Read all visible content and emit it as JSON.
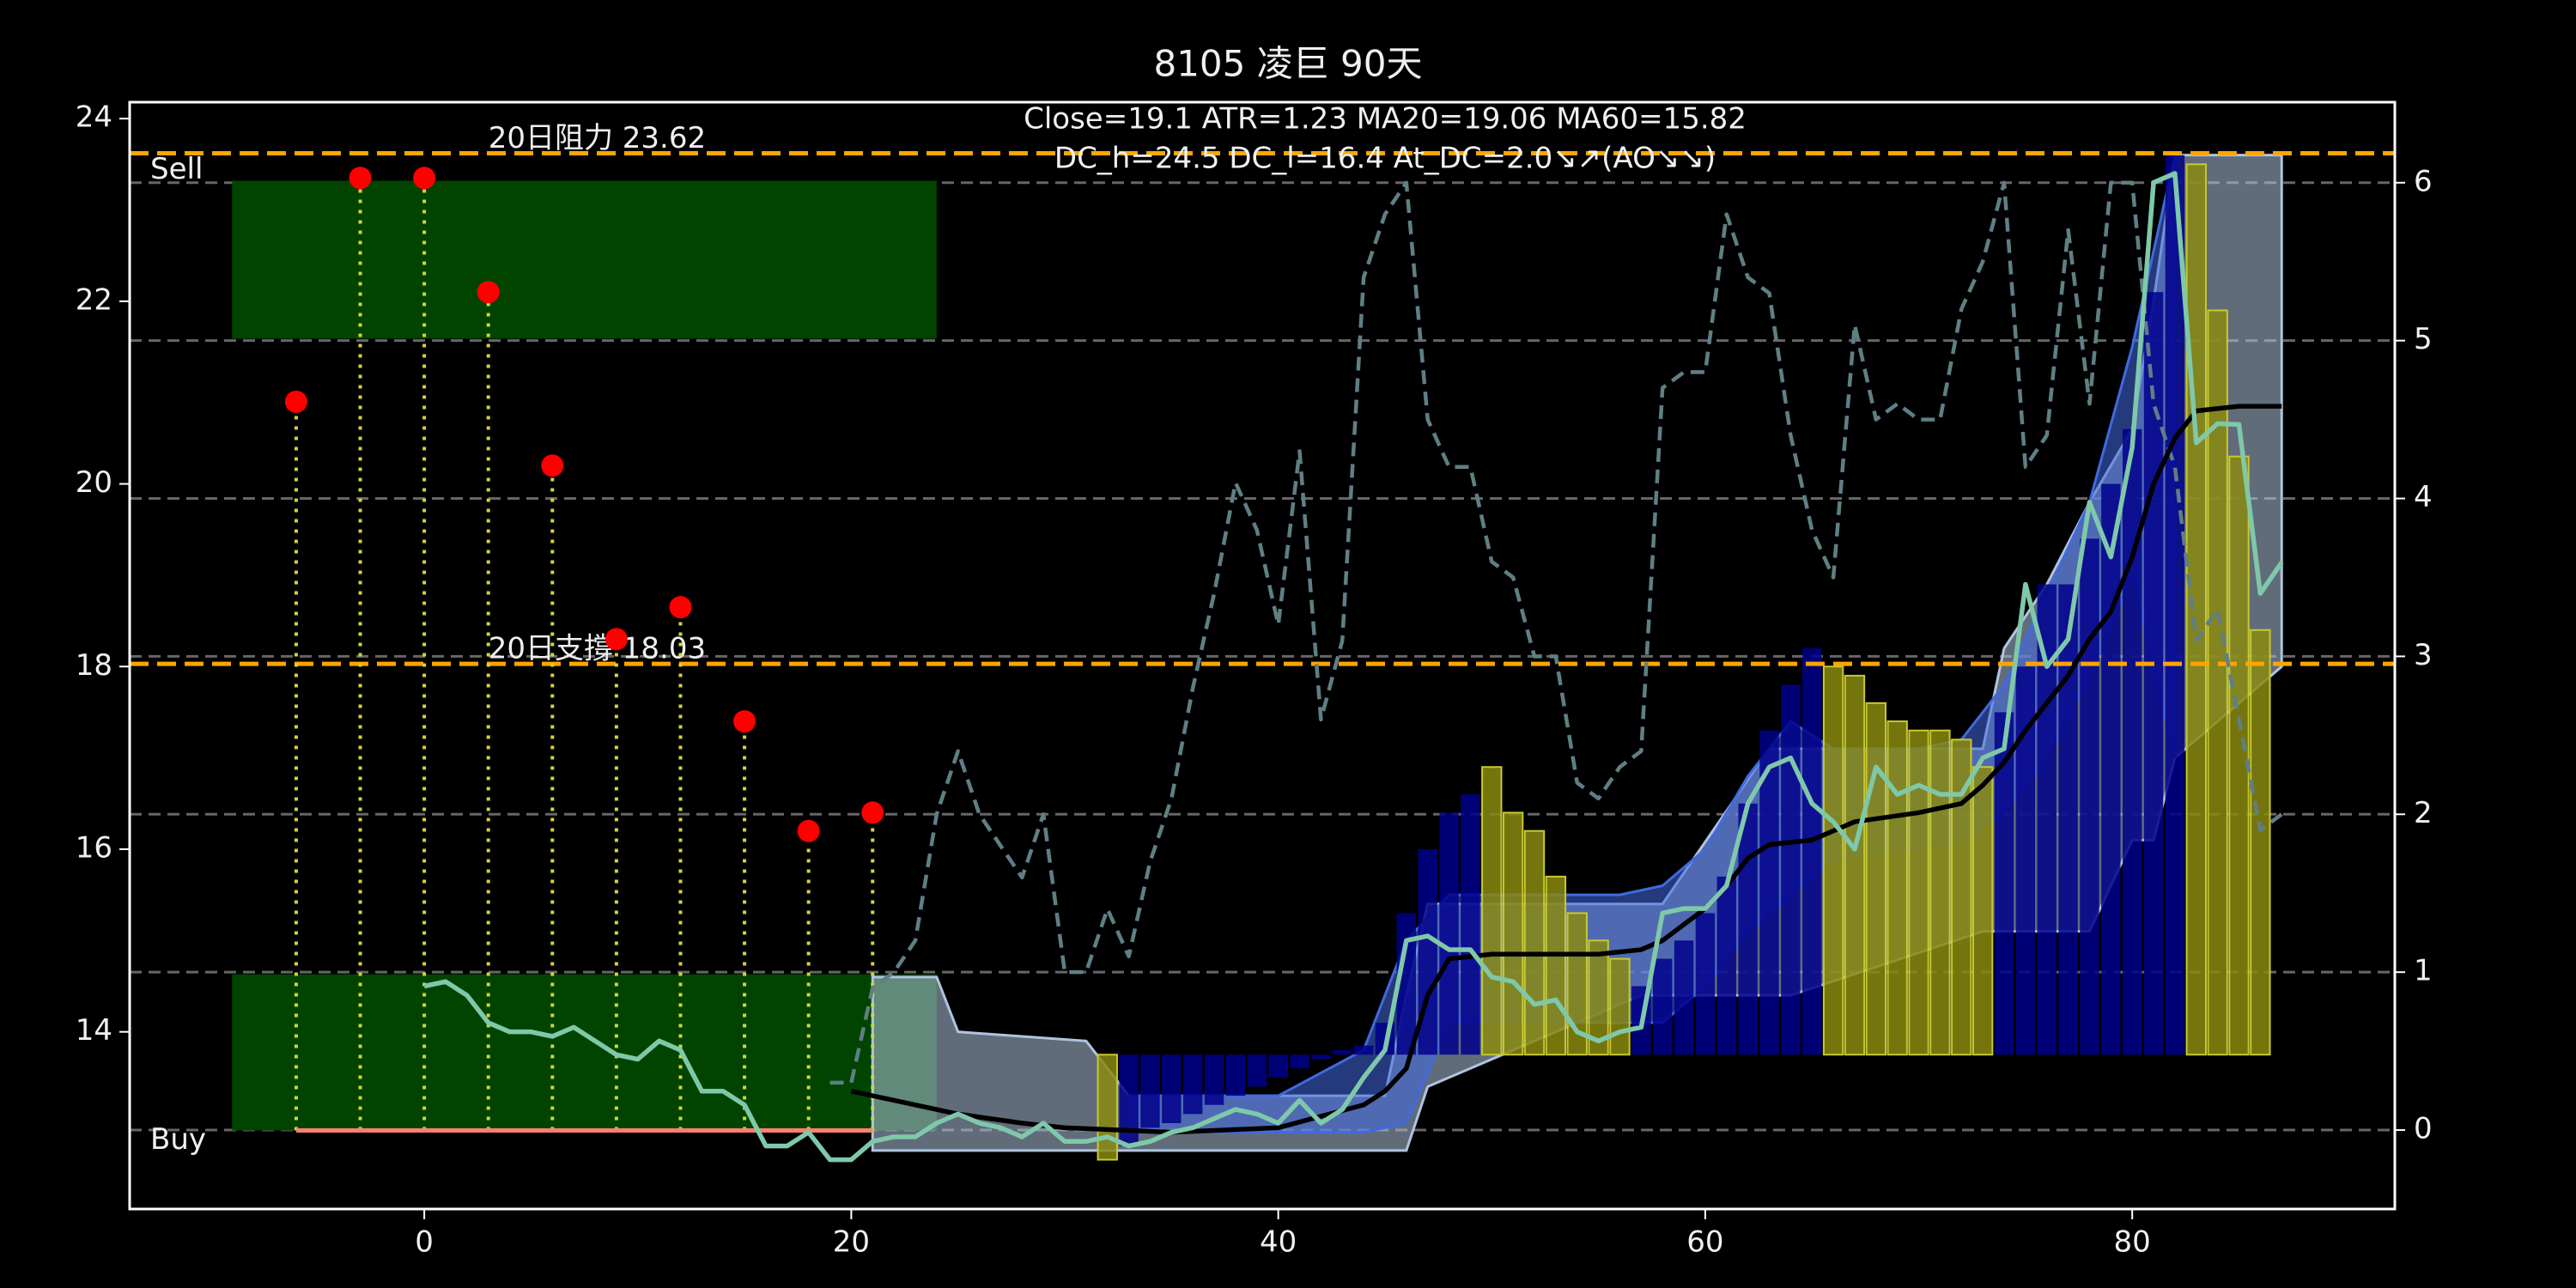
{
  "chart_data": {
    "type": "line",
    "title": "8105 凌巨 90天",
    "annotations": [
      "Close=19.1 ATR=1.23 MA20=19.06 MA60=15.82",
      "DC_h=24.5 DC_l=16.4 At_DC=2.0↘↗(AO↘↘)"
    ],
    "xlim": [
      -13.8,
      92.3
    ],
    "ylim": [
      12.06,
      24.18
    ],
    "y2lim": [
      -0.5,
      6.51
    ],
    "xticks": [
      0,
      20,
      40,
      60,
      80
    ],
    "yticks": [
      14,
      16,
      18,
      20,
      22,
      24
    ],
    "y2ticks": [
      0,
      1,
      2,
      3,
      4,
      5,
      6
    ],
    "grid": true,
    "levels": [
      {
        "value": 23.62,
        "label": "20日阻力 23.62"
      },
      {
        "value": 18.03,
        "label": "20日支撐 18.03"
      }
    ],
    "level_color": "#ffa500",
    "zones": [
      {
        "label": "Sell",
        "x": [
          -9,
          24
        ],
        "y": [
          21.59,
          23.32
        ],
        "color": "#004400"
      },
      {
        "label": "Buy",
        "x": [
          -9,
          24
        ],
        "y": [
          12.92,
          14.63
        ],
        "color": "#004400"
      }
    ],
    "signals": {
      "x": [
        -6,
        -3,
        0,
        3,
        6,
        9,
        12,
        15,
        18,
        21
      ],
      "values": [
        20.9,
        23.35,
        23.35,
        22.1,
        20.2,
        18.3,
        18.65,
        17.4,
        16.2,
        16.4
      ],
      "base": 12.92,
      "color": "#ff0000",
      "stem_color": "#d4d43a"
    },
    "support_line": {
      "x": [
        -6,
        21
      ],
      "value": 12.92,
      "color": "#fa8072"
    },
    "bar_base": 13.75,
    "bar_series": [
      {
        "color": "#00008b",
        "x": [
          33,
          34,
          35,
          36,
          37,
          38,
          39,
          40,
          41,
          42,
          43,
          44,
          45,
          46,
          47,
          48,
          49,
          57,
          58,
          59,
          60,
          61,
          62,
          63,
          64,
          65,
          74,
          75,
          76,
          77,
          78,
          79,
          80,
          81,
          82
        ],
        "values": [
          12.75,
          12.95,
          13.0,
          13.1,
          13.2,
          13.3,
          13.4,
          13.5,
          13.6,
          13.7,
          13.8,
          13.85,
          14.1,
          15.3,
          16.0,
          16.4,
          16.6,
          14.5,
          14.8,
          15.0,
          15.3,
          15.7,
          16.5,
          17.3,
          17.8,
          18.2,
          17.5,
          18.0,
          18.9,
          18.9,
          19.4,
          20.0,
          20.6,
          22.1,
          23.6
        ]
      },
      {
        "color": "#8a8a10",
        "x": [
          32,
          50,
          51,
          52,
          53,
          54,
          55,
          56,
          66,
          67,
          68,
          69,
          70,
          71,
          72,
          73,
          83,
          84,
          85,
          86
        ],
        "values": [
          12.6,
          16.9,
          16.4,
          16.2,
          15.7,
          15.3,
          15.0,
          14.8,
          18.0,
          17.9,
          17.6,
          17.4,
          17.3,
          17.3,
          17.2,
          16.9,
          23.5,
          21.9,
          20.3,
          18.4
        ]
      }
    ],
    "bands": [
      {
        "color": "#b0c4de",
        "x": [
          21,
          24,
          25,
          31,
          32,
          33,
          45,
          46,
          47,
          57,
          58,
          63,
          64,
          73,
          74,
          76,
          78,
          80,
          81,
          82,
          87
        ],
        "upper": [
          14.6,
          14.6,
          14.0,
          13.9,
          13.6,
          13.3,
          13.3,
          14.4,
          15.4,
          15.4,
          15.4,
          17.1,
          17.1,
          17.1,
          18.2,
          18.9,
          19.8,
          20.6,
          22.0,
          23.6,
          23.6
        ],
        "lower": [
          12.7,
          12.7,
          12.7,
          12.7,
          12.7,
          12.7,
          12.7,
          12.7,
          13.4,
          14.4,
          14.4,
          14.4,
          14.4,
          15.1,
          15.1,
          15.1,
          15.1,
          16.1,
          16.1,
          17.0,
          18.0
        ]
      },
      {
        "color": "#4169e1",
        "x": [
          33,
          40,
          44,
          46,
          48,
          56,
          58,
          60,
          62,
          64,
          66,
          70,
          72,
          74,
          76,
          78,
          80,
          82
        ],
        "upper": [
          13.3,
          13.3,
          13.8,
          15.0,
          15.5,
          15.5,
          15.6,
          16.0,
          16.8,
          17.4,
          17.1,
          17.1,
          17.2,
          17.8,
          18.8,
          19.8,
          21.5,
          23.6
        ],
        "lower": [
          12.9,
          12.9,
          12.9,
          13.0,
          14.1,
          14.1,
          14.1,
          14.5,
          15.1,
          15.5,
          15.9,
          16.0,
          16.1,
          16.4,
          17.0,
          17.9,
          19.0,
          17.0
        ]
      }
    ],
    "lines": [
      {
        "color": "#5f7f85",
        "dashed": true,
        "axis": "y2",
        "x": [
          19,
          20,
          21,
          22,
          23,
          24,
          25,
          26,
          27,
          28,
          29,
          30,
          31,
          32,
          33,
          34,
          35,
          36,
          37,
          38,
          39,
          40,
          41,
          42,
          43,
          44,
          45,
          46,
          47,
          48,
          49,
          50,
          51,
          52,
          53,
          54,
          55,
          56,
          57,
          58,
          59,
          60,
          61,
          62,
          63,
          64,
          65,
          66,
          67,
          68,
          69,
          70,
          71,
          72,
          73,
          74,
          75,
          76,
          77,
          78,
          79,
          80,
          81,
          82,
          83,
          84,
          85,
          86,
          87
        ],
        "values": [
          0.3,
          0.3,
          0.9,
          1.0,
          1.2,
          2.0,
          2.4,
          2.0,
          1.8,
          1.6,
          2.0,
          1.0,
          1.0,
          1.4,
          1.1,
          1.7,
          2.1,
          2.8,
          3.4,
          4.1,
          3.8,
          3.2,
          4.3,
          2.6,
          3.1,
          5.4,
          5.8,
          6.0,
          4.5,
          4.2,
          4.2,
          3.6,
          3.5,
          3.0,
          3.0,
          2.2,
          2.1,
          2.3,
          2.4,
          4.7,
          4.8,
          4.8,
          5.8,
          5.4,
          5.3,
          4.4,
          3.8,
          3.5,
          5.1,
          4.5,
          4.6,
          4.5,
          4.5,
          5.2,
          5.5,
          6.0,
          4.2,
          4.4,
          5.7,
          4.6,
          6.0,
          6.0,
          4.6,
          4.2,
          3.1,
          3.3,
          2.6,
          1.9,
          2.0
        ]
      },
      {
        "color": "#000000",
        "dashed": false,
        "axis": "y",
        "x": [
          20,
          22,
          25,
          28,
          30,
          35,
          40,
          44,
          45,
          46,
          47,
          48,
          50,
          55,
          57,
          58,
          60,
          61,
          62,
          63,
          65,
          67,
          70,
          72,
          73,
          74,
          75,
          76,
          77,
          78,
          79,
          80,
          81,
          82,
          83,
          85,
          87
        ],
        "values": [
          13.35,
          13.25,
          13.1,
          13.0,
          12.95,
          12.9,
          12.95,
          13.2,
          13.35,
          13.6,
          14.4,
          14.8,
          14.85,
          14.85,
          14.9,
          15.0,
          15.35,
          15.6,
          15.9,
          16.05,
          16.1,
          16.3,
          16.4,
          16.5,
          16.7,
          16.95,
          17.3,
          17.6,
          17.9,
          18.3,
          18.6,
          19.2,
          20.0,
          20.5,
          20.8,
          20.85,
          20.85
        ]
      },
      {
        "color": "#7fc8a9",
        "dashed": false,
        "axis": "y",
        "x": [
          0,
          1,
          2,
          3,
          4,
          5,
          6,
          7,
          8,
          9,
          10,
          11,
          12,
          13,
          14,
          15,
          16,
          17,
          18,
          19,
          20,
          21,
          22,
          23,
          24,
          25,
          26,
          27,
          28,
          29,
          30,
          31,
          32,
          33,
          34,
          35,
          36,
          37,
          38,
          39,
          40,
          41,
          42,
          43,
          44,
          45,
          46,
          47,
          48,
          49,
          50,
          51,
          52,
          53,
          54,
          55,
          56,
          57,
          58,
          59,
          60,
          61,
          62,
          63,
          64,
          65,
          66,
          67,
          68,
          69,
          70,
          71,
          72,
          73,
          74,
          75,
          76,
          77,
          78,
          79,
          80,
          81,
          82,
          83,
          84,
          85,
          86,
          87
        ],
        "values": [
          14.5,
          14.55,
          14.4,
          14.1,
          14.0,
          14.0,
          13.95,
          14.05,
          13.9,
          13.75,
          13.7,
          13.9,
          13.8,
          13.35,
          13.35,
          13.2,
          12.75,
          12.75,
          12.9,
          12.6,
          12.6,
          12.8,
          12.85,
          12.85,
          13.0,
          13.1,
          13.0,
          12.95,
          12.85,
          13.0,
          12.8,
          12.8,
          12.85,
          12.75,
          12.8,
          12.9,
          12.95,
          13.05,
          13.15,
          13.1,
          13.0,
          13.25,
          13.0,
          13.15,
          13.5,
          13.8,
          15.0,
          15.05,
          14.9,
          14.9,
          14.6,
          14.55,
          14.3,
          14.35,
          14.0,
          13.9,
          14.0,
          14.05,
          15.3,
          15.35,
          15.35,
          15.6,
          16.5,
          16.9,
          17.0,
          16.5,
          16.3,
          16.0,
          16.9,
          16.6,
          16.7,
          16.6,
          16.6,
          17.0,
          17.1,
          18.9,
          18.0,
          18.3,
          19.8,
          19.2,
          20.4,
          23.3,
          23.4,
          20.45,
          20.66,
          20.65,
          18.8,
          19.14
        ]
      }
    ]
  }
}
